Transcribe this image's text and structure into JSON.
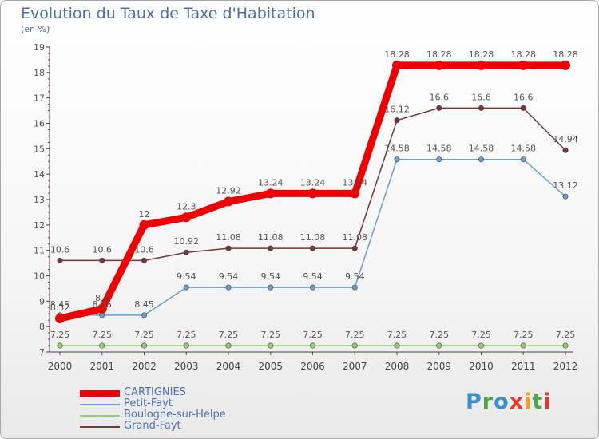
{
  "header": {
    "title": "Evolution du Taux de Taxe d'Habitation",
    "subtitle": "(en %)"
  },
  "logo": {
    "text": "Proxiti",
    "colors": [
      "#3b8fd0",
      "#4aa84a",
      "#e23b2b",
      "#f0a321"
    ]
  },
  "chart_data": {
    "type": "line",
    "title": "Evolution du Taux de Taxe d'Habitation",
    "ylabel": "(en %)",
    "xlabel": "",
    "ylim": [
      7,
      19
    ],
    "y_ticks": [
      7,
      8,
      9,
      10,
      11,
      12,
      13,
      14,
      15,
      16,
      17,
      18,
      19
    ],
    "grid": false,
    "legend_position": "bottom-left",
    "categories": [
      "2000",
      "2001",
      "2002",
      "2003",
      "2004",
      "2005",
      "2006",
      "2007",
      "2008",
      "2009",
      "2010",
      "2011",
      "2012"
    ],
    "series": [
      {
        "name": "CARTIGNIES",
        "color": "#ee0000",
        "values": [
          8.32,
          8.7,
          12,
          12.3,
          12.92,
          13.24,
          13.24,
          13.24,
          18.28,
          18.28,
          18.28,
          18.28,
          18.28
        ],
        "labels": [
          "8.32",
          "8.7",
          "12",
          "12.3",
          "12.92",
          "13.24",
          "13.24",
          "13.24",
          "18.28",
          "18.28",
          "18.28",
          "18.28",
          "18.28"
        ]
      },
      {
        "name": "Petit-Fayt",
        "color": "#6a9fd0",
        "values": [
          8.45,
          8.45,
          8.45,
          9.54,
          9.54,
          9.54,
          9.54,
          9.54,
          14.58,
          14.58,
          14.58,
          14.58,
          13.12
        ],
        "labels": [
          "8.45",
          "8.45",
          "8.45",
          "9.54",
          "9.54",
          "9.54",
          "9.54",
          "9.54",
          "14.58",
          "14.58",
          "14.58",
          "14.58",
          "13.12"
        ]
      },
      {
        "name": "Boulogne-sur-Helpe",
        "color": "#8fd16a",
        "values": [
          7.25,
          7.25,
          7.25,
          7.25,
          7.25,
          7.25,
          7.25,
          7.25,
          7.25,
          7.25,
          7.25,
          7.25,
          7.25
        ],
        "labels": [
          "7.25",
          "7.25",
          "7.25",
          "7.25",
          "7.25",
          "7.25",
          "7.25",
          "7.25",
          "7.25",
          "7.25",
          "7.25",
          "7.25",
          "7.25"
        ]
      },
      {
        "name": "Grand-Fayt",
        "color": "#7a3535",
        "values": [
          10.6,
          10.6,
          10.6,
          10.92,
          11.08,
          11.08,
          11.08,
          11.08,
          16.12,
          16.6,
          16.6,
          16.6,
          14.94
        ],
        "labels": [
          "10.6",
          "10.6",
          "10.6",
          "10.92",
          "11.08",
          "11.08",
          "11.08",
          "11.08",
          "16.12",
          "16.6",
          "16.6",
          "16.6",
          "14.94"
        ]
      }
    ]
  }
}
